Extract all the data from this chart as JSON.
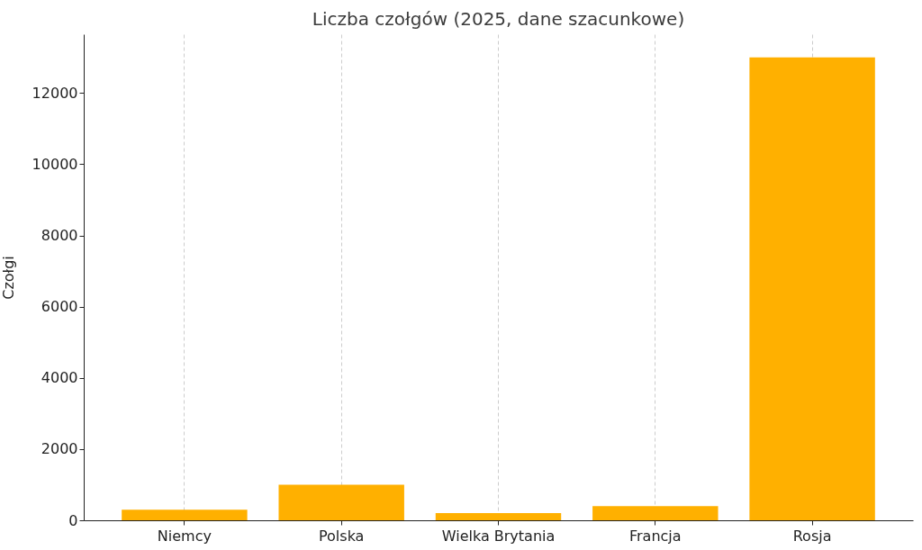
{
  "chart_data": {
    "type": "bar",
    "title": "Liczba czołgów (2025, dane szacunkowe)",
    "ylabel": "Czołgi",
    "categories": [
      "Niemcy",
      "Polska",
      "Wielka Brytania",
      "Francja",
      "Rosja"
    ],
    "values": [
      300,
      1000,
      200,
      400,
      13000
    ],
    "color": "#ffb000",
    "ylim": [
      0,
      13650
    ],
    "yticks": [
      0,
      2000,
      4000,
      6000,
      8000,
      10000,
      12000
    ],
    "grid": "x"
  }
}
